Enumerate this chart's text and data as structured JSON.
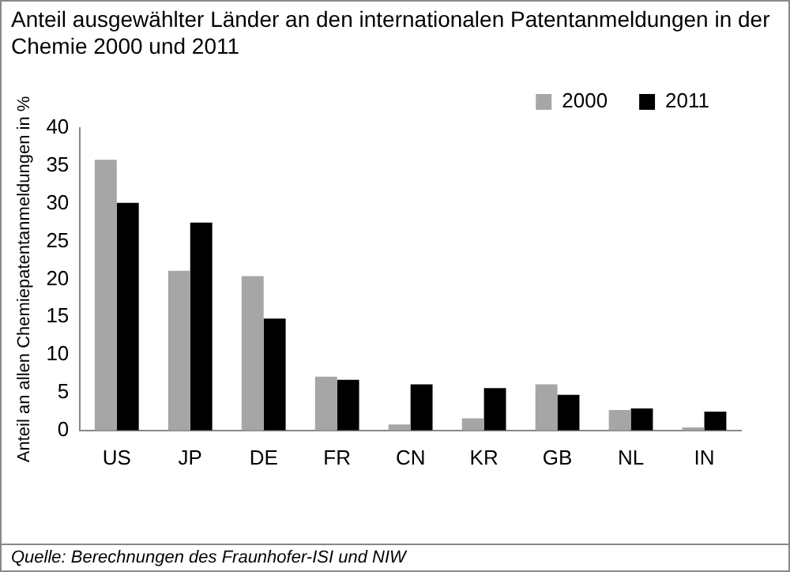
{
  "chart_data": {
    "type": "bar",
    "title": "Anteil ausgewählter Länder an den internationalen Patentanmeldungen in der Chemie 2000 und 2011",
    "ylabel": "Anteil an allen Chemiepatentanmeldungen in %",
    "categories": [
      "US",
      "JP",
      "DE",
      "FR",
      "CN",
      "KR",
      "GB",
      "NL",
      "IN"
    ],
    "series": [
      {
        "name": "2000",
        "color": "#a6a6a6",
        "values": [
          35.8,
          21.1,
          20.4,
          7.1,
          0.8,
          1.6,
          6.1,
          2.7,
          0.4
        ]
      },
      {
        "name": "2011",
        "color": "#000000",
        "values": [
          30.1,
          27.5,
          14.8,
          6.7,
          6.1,
          5.6,
          4.7,
          2.9,
          2.5
        ]
      }
    ],
    "ylim": [
      0,
      40
    ],
    "yticks": [
      0,
      5,
      10,
      15,
      20,
      25,
      30,
      35,
      40
    ],
    "grid": false,
    "legend": "top right",
    "annotations": [
      "Quelle: Berechnungen des Fraunhofer-ISI und NIW"
    ]
  }
}
